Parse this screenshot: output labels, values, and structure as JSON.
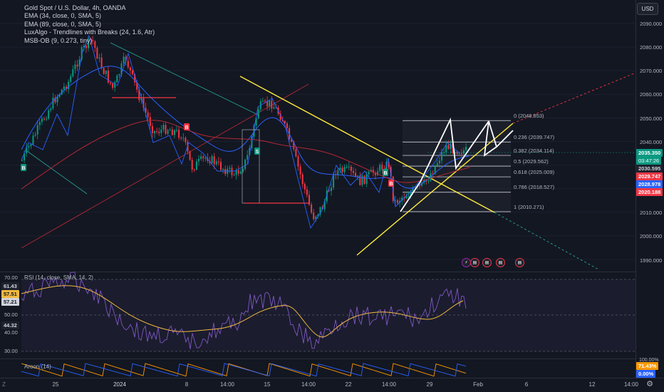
{
  "legend": {
    "title": "Gold Spot / U.S. Dollar, 4h, OANDA",
    "ema34": "EMA (34, close, 0, SMA, 5)",
    "ema89": "EMA (89, close, 0, SMA, 5)",
    "luxalgo": "LuxAlgo - Trendlines with Breaks (24, 1.6, Atr)",
    "msbob": "MSB-OB (9, 0.273, tiny)"
  },
  "currency": "USD",
  "price_axis": [
    "2090.000",
    "2080.000",
    "2070.000",
    "2060.000",
    "2050.000",
    "2040.000",
    "2010.000",
    "2000.000",
    "1990.000"
  ],
  "price_badges": {
    "last": "2035.350",
    "countdown": "03:47:26",
    "b2": "2030.595",
    "b3": "2029.747",
    "b4": "2028.978",
    "b5": "2020.188"
  },
  "fib_levels": [
    {
      "label": "0 (2048.853)"
    },
    {
      "label": "0.236 (2039.747)"
    },
    {
      "label": "0.382 (2034.114)"
    },
    {
      "label": "0.5 (2029.562)"
    },
    {
      "label": "0.618 (2025.009)"
    },
    {
      "label": "0.786 (2018.527)"
    },
    {
      "label": "1 (2010.271)"
    }
  ],
  "rsi": {
    "label": "RSI (14, close, SMA, 14, 2)",
    "axis_top": "70.00",
    "axis_mid": "50.00",
    "axis_low": "40.00",
    "axis_bottom": "30.00",
    "badge1": "61.43",
    "badge2": "57.51",
    "badge3": "57.21",
    "badge4": "44.32"
  },
  "aroon": {
    "label": "Aroon (14)",
    "axis_top": "100.00%",
    "badge_up": "71.43%",
    "badge_down": "0.00%"
  },
  "time_axis": [
    "25",
    "2024",
    "8",
    "14:00",
    "15",
    "14:00",
    "22",
    "14:00",
    "29",
    "Feb",
    "6",
    "12",
    "14:00"
  ],
  "timezone": "Z",
  "markers": {
    "b": "B",
    "s": "S"
  },
  "colors": {
    "background": "#131722",
    "up": "#089981",
    "down": "#f23645",
    "ema34": "#2962ff",
    "ema89": "#b22833",
    "trend_yellow": "#ffeb3b",
    "rsi_line": "#7e57c2",
    "rsi_ma": "#f0b841"
  },
  "icons": [
    "flash-event-icon",
    "us-flag-icon",
    "us-flag-icon",
    "us-flag-icon",
    "us-flag-icon"
  ]
}
